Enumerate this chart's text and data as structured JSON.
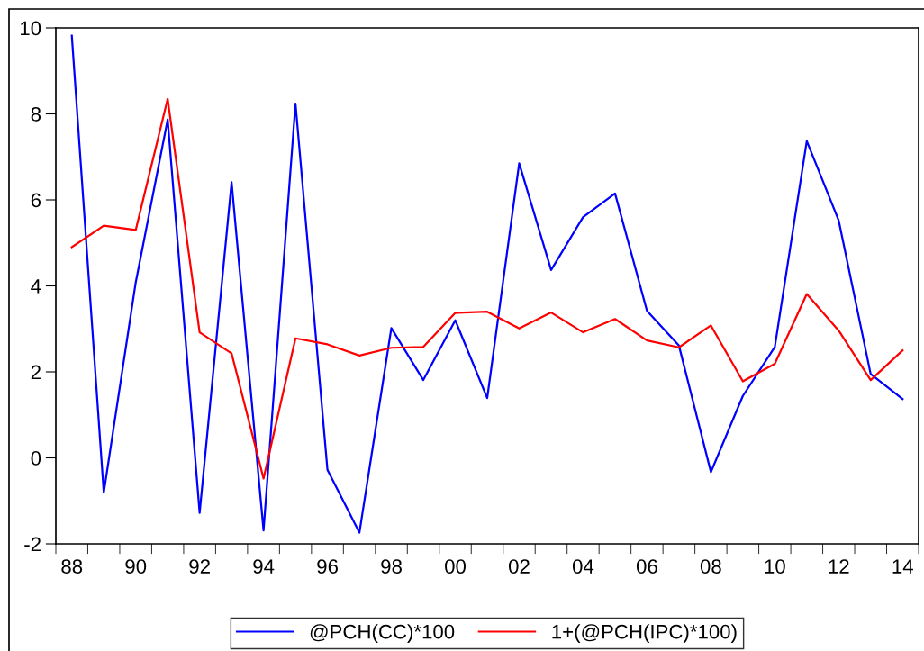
{
  "chart_data": {
    "type": "line",
    "categories": [
      "88",
      null,
      "90",
      null,
      "92",
      null,
      "94",
      null,
      "96",
      null,
      "98",
      null,
      "00",
      null,
      "02",
      null,
      "04",
      null,
      "06",
      null,
      "08",
      null,
      "10",
      null,
      "12",
      null,
      "14"
    ],
    "series": [
      {
        "name": "@PCH(CC)*100",
        "color": "#0000ff",
        "values": [
          9.82,
          -0.81,
          4.08,
          7.87,
          -1.28,
          6.41,
          -1.69,
          8.24,
          -0.28,
          -1.74,
          3.02,
          1.81,
          3.2,
          1.39,
          6.85,
          4.37,
          5.6,
          6.15,
          3.42,
          2.61,
          -0.33,
          1.44,
          2.58,
          7.37,
          5.52,
          1.95,
          1.37
        ]
      },
      {
        "name": "1+(@PCH(IPC)*100)",
        "color": "#ff0000",
        "values": [
          4.9,
          5.4,
          5.3,
          8.35,
          2.92,
          2.43,
          -0.48,
          2.78,
          2.64,
          2.38,
          2.56,
          2.58,
          3.37,
          3.4,
          3.01,
          3.38,
          2.92,
          3.23,
          2.73,
          2.57,
          3.08,
          1.78,
          2.19,
          3.81,
          2.96,
          1.81,
          2.5
        ]
      }
    ],
    "ylim": [
      -2,
      10
    ],
    "yticks": [
      -2,
      0,
      2,
      4,
      6,
      8,
      10
    ],
    "grid": false,
    "legend": "bottom",
    "marker": "none",
    "line_style": "solid"
  }
}
